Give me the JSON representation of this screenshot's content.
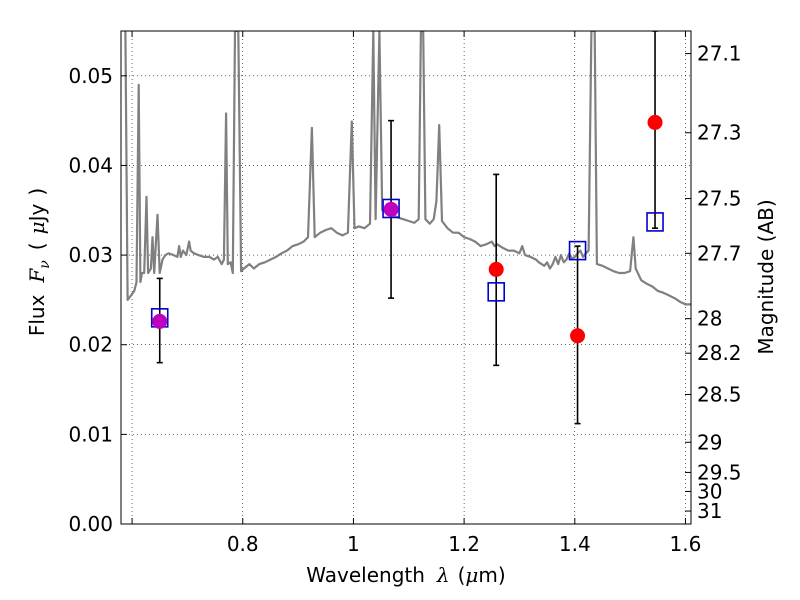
{
  "chart_data": {
    "type": "scatter",
    "xlabel": {
      "prefix": "Wavelength",
      "symbol": "λ",
      "open": "(",
      "unit_mu": "μ",
      "unit_rest": "m)"
    },
    "ylabel": {
      "prefix": "Flux",
      "symbol": "F",
      "subscript": "ν",
      "open": "(",
      "unit_mu": "μ",
      "unit_rest": "Jy",
      "close": ")"
    },
    "y2label": "Magnitude (AB)",
    "xlim": [
      0.58,
      1.61
    ],
    "ylim": [
      0.0,
      0.055
    ],
    "x_ticks": [
      {
        "value": 0.6,
        "label": ""
      },
      {
        "value": 0.8,
        "label": "0.8"
      },
      {
        "value": 1.0,
        "label": "1"
      },
      {
        "value": 1.2,
        "label": "1.2"
      },
      {
        "value": 1.4,
        "label": "1.4"
      },
      {
        "value": 1.6,
        "label": "1.6"
      }
    ],
    "y_ticks": [
      {
        "value": 0.0,
        "label": "0.00"
      },
      {
        "value": 0.01,
        "label": "0.01"
      },
      {
        "value": 0.02,
        "label": "0.02"
      },
      {
        "value": 0.03,
        "label": "0.03"
      },
      {
        "value": 0.04,
        "label": "0.04"
      },
      {
        "value": 0.05,
        "label": "0.05"
      }
    ],
    "y2_ticks": [
      {
        "value": 27.1,
        "label": "27.1"
      },
      {
        "value": 27.3,
        "label": "27.3"
      },
      {
        "value": 27.5,
        "label": "27.5"
      },
      {
        "value": 27.7,
        "label": "27.7"
      },
      {
        "value": 28,
        "label": "28"
      },
      {
        "value": 28.2,
        "label": "28.2"
      },
      {
        "value": 28.5,
        "label": "28.5"
      },
      {
        "value": 29,
        "label": "29"
      },
      {
        "value": 29.5,
        "label": "29.5"
      },
      {
        "value": 30,
        "label": "30"
      },
      {
        "value": 31,
        "label": "31"
      }
    ],
    "grid": true,
    "colors": {
      "spectrum": "#808080",
      "observed": "#ff0000",
      "model": "#0000cc",
      "errorbar": "#000000",
      "overlap": "#bf00bf"
    },
    "series": [
      {
        "kind": "spectrum",
        "points": [
          [
            0.588,
            0.055
          ],
          [
            0.592,
            0.025
          ],
          [
            0.598,
            0.0255
          ],
          [
            0.604,
            0.026
          ],
          [
            0.608,
            0.027
          ],
          [
            0.612,
            0.049
          ],
          [
            0.615,
            0.027
          ],
          [
            0.618,
            0.028
          ],
          [
            0.622,
            0.028
          ],
          [
            0.626,
            0.0365
          ],
          [
            0.629,
            0.028
          ],
          [
            0.634,
            0.0285
          ],
          [
            0.637,
            0.032
          ],
          [
            0.64,
            0.028
          ],
          [
            0.646,
            0.0345
          ],
          [
            0.65,
            0.028
          ],
          [
            0.655,
            0.0295
          ],
          [
            0.66,
            0.03
          ],
          [
            0.666,
            0.0302
          ],
          [
            0.675,
            0.03
          ],
          [
            0.682,
            0.0298
          ],
          [
            0.685,
            0.031
          ],
          [
            0.688,
            0.0298
          ],
          [
            0.692,
            0.0305
          ],
          [
            0.698,
            0.03
          ],
          [
            0.703,
            0.0315
          ],
          [
            0.706,
            0.0305
          ],
          [
            0.712,
            0.0302
          ],
          [
            0.72,
            0.03
          ],
          [
            0.73,
            0.0298
          ],
          [
            0.74,
            0.0298
          ],
          [
            0.748,
            0.0295
          ],
          [
            0.755,
            0.0298
          ],
          [
            0.762,
            0.029
          ],
          [
            0.766,
            0.0295
          ],
          [
            0.77,
            0.0458
          ],
          [
            0.773,
            0.029
          ],
          [
            0.778,
            0.0292
          ],
          [
            0.782,
            0.028
          ],
          [
            0.786,
            0.055
          ],
          [
            0.792,
            0.055
          ],
          [
            0.797,
            0.0282
          ],
          [
            0.802,
            0.0285
          ],
          [
            0.812,
            0.029
          ],
          [
            0.82,
            0.0285
          ],
          [
            0.83,
            0.029
          ],
          [
            0.84,
            0.0292
          ],
          [
            0.85,
            0.0295
          ],
          [
            0.86,
            0.0298
          ],
          [
            0.87,
            0.0302
          ],
          [
            0.88,
            0.0305
          ],
          [
            0.89,
            0.031
          ],
          [
            0.9,
            0.0312
          ],
          [
            0.91,
            0.0315
          ],
          [
            0.918,
            0.032
          ],
          [
            0.925,
            0.0442
          ],
          [
            0.93,
            0.032
          ],
          [
            0.94,
            0.0325
          ],
          [
            0.95,
            0.0328
          ],
          [
            0.96,
            0.033
          ],
          [
            0.97,
            0.0325
          ],
          [
            0.98,
            0.0322
          ],
          [
            0.99,
            0.0325
          ],
          [
            0.997,
            0.0449
          ],
          [
            1.002,
            0.033
          ],
          [
            1.01,
            0.0332
          ],
          [
            1.02,
            0.033
          ],
          [
            1.03,
            0.0335
          ],
          [
            1.036,
            0.055
          ],
          [
            1.04,
            0.034
          ],
          [
            1.047,
            0.055
          ],
          [
            1.052,
            0.035
          ],
          [
            1.06,
            0.0348
          ],
          [
            1.07,
            0.0345
          ],
          [
            1.08,
            0.0342
          ],
          [
            1.09,
            0.034
          ],
          [
            1.1,
            0.0338
          ],
          [
            1.11,
            0.0336
          ],
          [
            1.118,
            0.034
          ],
          [
            1.122,
            0.055
          ],
          [
            1.126,
            0.055
          ],
          [
            1.13,
            0.034
          ],
          [
            1.138,
            0.0335
          ],
          [
            1.145,
            0.034
          ],
          [
            1.15,
            0.036
          ],
          [
            1.155,
            0.0445
          ],
          [
            1.16,
            0.0338
          ],
          [
            1.17,
            0.033
          ],
          [
            1.18,
            0.0325
          ],
          [
            1.19,
            0.0325
          ],
          [
            1.2,
            0.032
          ],
          [
            1.21,
            0.0318
          ],
          [
            1.22,
            0.0315
          ],
          [
            1.23,
            0.031
          ],
          [
            1.24,
            0.0312
          ],
          [
            1.25,
            0.0315
          ],
          [
            1.255,
            0.031
          ],
          [
            1.26,
            0.0312
          ],
          [
            1.27,
            0.0308
          ],
          [
            1.28,
            0.0305
          ],
          [
            1.29,
            0.0305
          ],
          [
            1.3,
            0.0302
          ],
          [
            1.305,
            0.031
          ],
          [
            1.31,
            0.03
          ],
          [
            1.32,
            0.0298
          ],
          [
            1.33,
            0.0295
          ],
          [
            1.335,
            0.0292
          ],
          [
            1.34,
            0.029
          ],
          [
            1.345,
            0.0288
          ],
          [
            1.35,
            0.0292
          ],
          [
            1.355,
            0.0285
          ],
          [
            1.36,
            0.029
          ],
          [
            1.365,
            0.0298
          ],
          [
            1.37,
            0.029
          ],
          [
            1.375,
            0.03
          ],
          [
            1.38,
            0.0292
          ],
          [
            1.385,
            0.0295
          ],
          [
            1.39,
            0.0302
          ],
          [
            1.395,
            0.0296
          ],
          [
            1.4,
            0.0298
          ],
          [
            1.405,
            0.0302
          ],
          [
            1.41,
            0.0305
          ],
          [
            1.415,
            0.0298
          ],
          [
            1.42,
            0.0302
          ],
          [
            1.425,
            0.0305
          ],
          [
            1.43,
            0.055
          ],
          [
            1.436,
            0.055
          ],
          [
            1.44,
            0.029
          ],
          [
            1.45,
            0.0288
          ],
          [
            1.46,
            0.0285
          ],
          [
            1.47,
            0.0282
          ],
          [
            1.48,
            0.028
          ],
          [
            1.49,
            0.028
          ],
          [
            1.5,
            0.0282
          ],
          [
            1.506,
            0.032
          ],
          [
            1.51,
            0.0285
          ],
          [
            1.52,
            0.0272
          ],
          [
            1.53,
            0.0268
          ],
          [
            1.54,
            0.0265
          ],
          [
            1.55,
            0.026
          ],
          [
            1.56,
            0.0258
          ],
          [
            1.57,
            0.0255
          ],
          [
            1.58,
            0.0252
          ],
          [
            1.59,
            0.0248
          ],
          [
            1.6,
            0.0245
          ],
          [
            1.61,
            0.0245
          ]
        ]
      },
      {
        "kind": "errorbar",
        "bars": [
          {
            "x": 0.65,
            "low": 0.018,
            "high": 0.0274
          },
          {
            "x": 1.068,
            "low": 0.0252,
            "high": 0.045
          },
          {
            "x": 1.258,
            "low": 0.0177,
            "high": 0.039
          },
          {
            "x": 1.405,
            "low": 0.0112,
            "high": 0.031
          },
          {
            "x": 1.545,
            "low": 0.033,
            "high": 0.055
          }
        ]
      },
      {
        "kind": "model",
        "points": [
          {
            "x": 0.65,
            "y": 0.023
          },
          {
            "x": 1.068,
            "y": 0.0352
          },
          {
            "x": 1.258,
            "y": 0.0259
          },
          {
            "x": 1.405,
            "y": 0.0305
          },
          {
            "x": 1.545,
            "y": 0.0337
          }
        ]
      },
      {
        "kind": "observed",
        "points": [
          {
            "x": 0.65,
            "y": 0.0226
          },
          {
            "x": 1.068,
            "y": 0.0351
          },
          {
            "x": 1.258,
            "y": 0.0284
          },
          {
            "x": 1.405,
            "y": 0.021
          },
          {
            "x": 1.545,
            "y": 0.0448
          }
        ]
      }
    ]
  }
}
